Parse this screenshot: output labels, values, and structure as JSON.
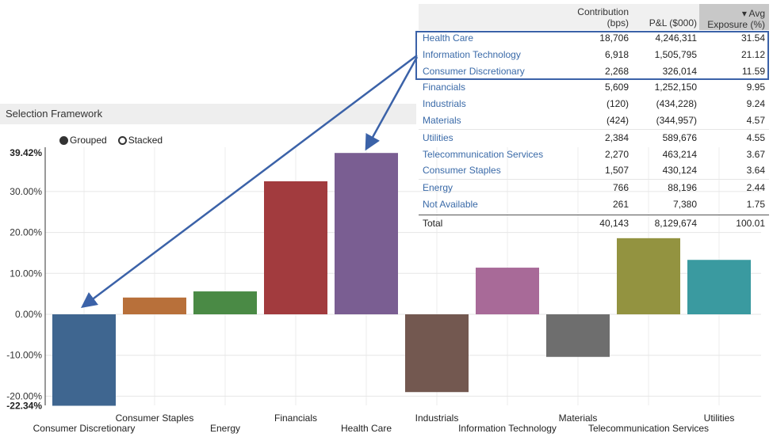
{
  "panel": {
    "title": "Selection Framework"
  },
  "legend": {
    "grouped": "Grouped",
    "stacked": "Stacked",
    "selected": "grouped"
  },
  "table": {
    "headers": {
      "contribution_1": "Contribution",
      "contribution_2": "(bps)",
      "pl": "P&L ($000)",
      "avg_1": "▾ Avg",
      "avg_2": "Exposure (%)"
    },
    "rows": [
      {
        "name": "Health Care",
        "contribution": "18,706",
        "pl": "4,246,311",
        "exposure": "31.54"
      },
      {
        "name": "Information Technology",
        "contribution": "6,918",
        "pl": "1,505,795",
        "exposure": "21.12"
      },
      {
        "name": "Consumer Discretionary",
        "contribution": "2,268",
        "pl": "326,014",
        "exposure": "11.59"
      },
      {
        "name": "Financials",
        "contribution": "5,609",
        "pl": "1,252,150",
        "exposure": "9.95"
      },
      {
        "name": "Industrials",
        "contribution": "(120)",
        "pl": "(434,228)",
        "exposure": "9.24"
      },
      {
        "name": "Materials",
        "contribution": "(424)",
        "pl": "(344,957)",
        "exposure": "4.57"
      },
      {
        "name": "Utilities",
        "contribution": "2,384",
        "pl": "589,676",
        "exposure": "4.55"
      },
      {
        "name": "Telecommunication Services",
        "contribution": "2,270",
        "pl": "463,214",
        "exposure": "3.67"
      },
      {
        "name": "Consumer Staples",
        "contribution": "1,507",
        "pl": "430,124",
        "exposure": "3.64"
      },
      {
        "name": "Energy",
        "contribution": "766",
        "pl": "88,196",
        "exposure": "2.44"
      },
      {
        "name": "Not Available",
        "contribution": "261",
        "pl": "7,380",
        "exposure": "1.75"
      }
    ],
    "total": {
      "name": "Total",
      "contribution": "40,143",
      "pl": "8,129,674",
      "exposure": "100.01"
    }
  },
  "chart_data": {
    "type": "bar",
    "categories": [
      "Consumer Discretionary",
      "Consumer Staples",
      "Energy",
      "Financials",
      "Health Care",
      "Industrials",
      "Information Technology",
      "Materials",
      "Telecommunication Services",
      "Utilities"
    ],
    "values": [
      -22.34,
      4.1,
      5.6,
      32.5,
      39.42,
      -19.0,
      11.4,
      -10.4,
      18.6,
      13.3
    ],
    "colors": [
      "#3f6690",
      "#b8703a",
      "#4a8a45",
      "#a23b3e",
      "#7a5e92",
      "#735850",
      "#a86a98",
      "#6e6e6e",
      "#939340",
      "#3a9aa0"
    ],
    "yticks": [
      "-20.00%",
      "-10.00%",
      "0.00%",
      "10.00%",
      "20.00%",
      "30.00%"
    ],
    "ytick_values": [
      -20,
      -10,
      0,
      10,
      20,
      30
    ],
    "ymax_label": "39.42%",
    "ymin_label": "-22.34%",
    "ylim": [
      -22.34,
      39.42
    ],
    "grid": true
  }
}
